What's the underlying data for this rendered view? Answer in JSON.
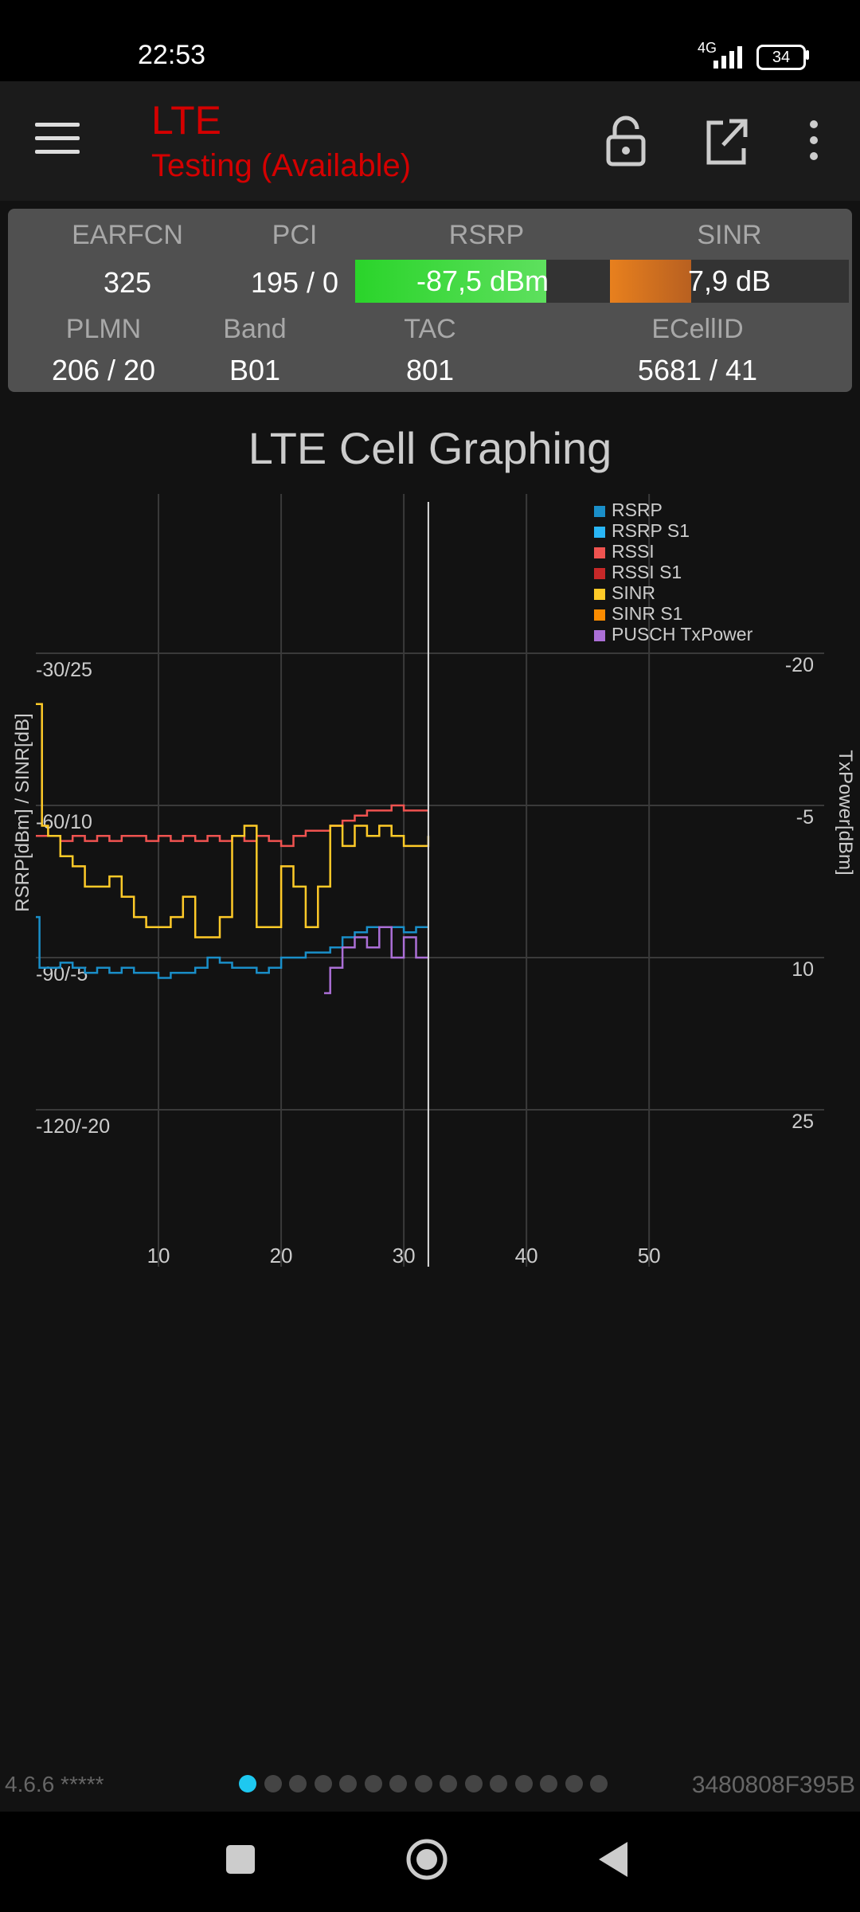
{
  "status": {
    "time": "22:53",
    "network": "4G",
    "battery": "34"
  },
  "app": {
    "title": "LTE",
    "subtitle": "Testing (Available)"
  },
  "colors": {
    "accent": "#d40000",
    "rsrp_bar": "#2ad42a",
    "sinr_bar": "#e8801e"
  },
  "cell": {
    "earfcn_label": "EARFCN",
    "earfcn": "325",
    "pci_label": "PCI",
    "pci": "195 / 0",
    "rsrp_label": "RSRP",
    "rsrp": "-87,5 dBm",
    "rsrp_level": 0.75,
    "sinr_label": "SINR",
    "sinr": "7,9 dB",
    "sinr_level": 0.34,
    "plmn_label": "PLMN",
    "plmn": "206 / 20",
    "band_label": "Band",
    "band": "B01",
    "tac_label": "TAC",
    "tac": "801",
    "ecellid_label": "ECellID",
    "ecellid": "5681 / 41"
  },
  "chart_title": "LTE Cell Graphing",
  "chart_data": {
    "type": "line",
    "x_ticks": [
      "10",
      "20",
      "30",
      "40",
      "50"
    ],
    "xlim": [
      0,
      62
    ],
    "cursor_x": 32,
    "left_axis": {
      "label": "RSRP[dBm] / SINR[dB]",
      "ticks": [
        "-30/25",
        "-60/10",
        "-90/-5",
        "-120/-20"
      ]
    },
    "right_axis": {
      "label": "TxPower[dBm]",
      "ticks": [
        "-20",
        "-5",
        "10",
        "25"
      ]
    },
    "legend": [
      {
        "name": "RSRP",
        "color": "#1a8fc9"
      },
      {
        "name": "RSRP S1",
        "color": "#29b6f6"
      },
      {
        "name": "RSSI",
        "color": "#ef5350"
      },
      {
        "name": "RSSI S1",
        "color": "#c62828"
      },
      {
        "name": "SINR",
        "color": "#ffca28"
      },
      {
        "name": "SINR S1",
        "color": "#fb8c00"
      },
      {
        "name": "PUSCH TxPower",
        "color": "#ab6fd6"
      }
    ],
    "series": [
      {
        "name": "RSSI",
        "color": "#ef5350",
        "axis": "rsrp",
        "x": [
          0,
          2,
          3,
          4,
          5,
          6,
          7,
          8,
          9,
          10,
          11,
          12,
          13,
          14,
          15,
          16,
          17,
          18,
          19,
          20,
          21,
          22,
          23,
          24,
          25,
          26,
          27,
          28,
          29,
          30,
          31,
          32
        ],
        "y": [
          -66,
          -67,
          -66,
          -67,
          -66,
          -67,
          -66,
          -66,
          -67,
          -66,
          -67,
          -66,
          -67,
          -66,
          -67,
          -66,
          -67,
          -66,
          -67,
          -68,
          -66,
          -65,
          -65,
          -64,
          -63,
          -62,
          -61,
          -61,
          -60,
          -61,
          -61,
          -61
        ]
      },
      {
        "name": "SINR",
        "color": "#ffca28",
        "axis": "sinr",
        "x": [
          0,
          0.5,
          1,
          2,
          3,
          4,
          5,
          6,
          7,
          8,
          9,
          10,
          11,
          12,
          13,
          14,
          15,
          16,
          17,
          18,
          19,
          20,
          21,
          22,
          23,
          24,
          25,
          26,
          27,
          28,
          29,
          30,
          31,
          32
        ],
        "y": [
          20,
          8,
          7,
          5,
          4,
          2,
          2,
          3,
          1,
          -1,
          -2,
          -2,
          -1,
          1,
          -3,
          -3,
          -1,
          7,
          8,
          -2,
          -2,
          4,
          2,
          -2,
          2,
          8,
          6,
          8,
          7,
          8,
          7,
          6,
          6,
          7
        ]
      },
      {
        "name": "RSRP",
        "color": "#1a8fc9",
        "axis": "rsrp",
        "x": [
          0,
          0.3,
          1,
          2,
          3,
          4,
          5,
          6,
          7,
          8,
          9,
          10,
          11,
          12,
          13,
          14,
          15,
          16,
          17,
          18,
          19,
          20,
          21,
          22,
          23,
          24,
          25,
          26,
          27,
          28,
          29,
          30,
          31,
          32
        ],
        "y": [
          -82,
          -92,
          -92,
          -91,
          -92,
          -93,
          -92,
          -93,
          -92,
          -93,
          -93,
          -94,
          -93,
          -93,
          -92,
          -90,
          -91,
          -92,
          -92,
          -93,
          -92,
          -90,
          -90,
          -89,
          -89,
          -88,
          -86,
          -85,
          -84,
          -84,
          -84,
          -85,
          -84,
          -84
        ]
      },
      {
        "name": "PUSCH TxPower",
        "color": "#ab6fd6",
        "axis": "tx",
        "x": [
          23.5,
          24,
          25,
          26,
          27,
          28,
          29,
          30,
          31,
          32
        ],
        "y": [
          13.5,
          11,
          9,
          8,
          9,
          7,
          10,
          8,
          10,
          10
        ]
      }
    ]
  },
  "footer": {
    "version": "4.6.6 *****",
    "id": "3480808F395B",
    "page_count": 15,
    "active_page": 0
  }
}
